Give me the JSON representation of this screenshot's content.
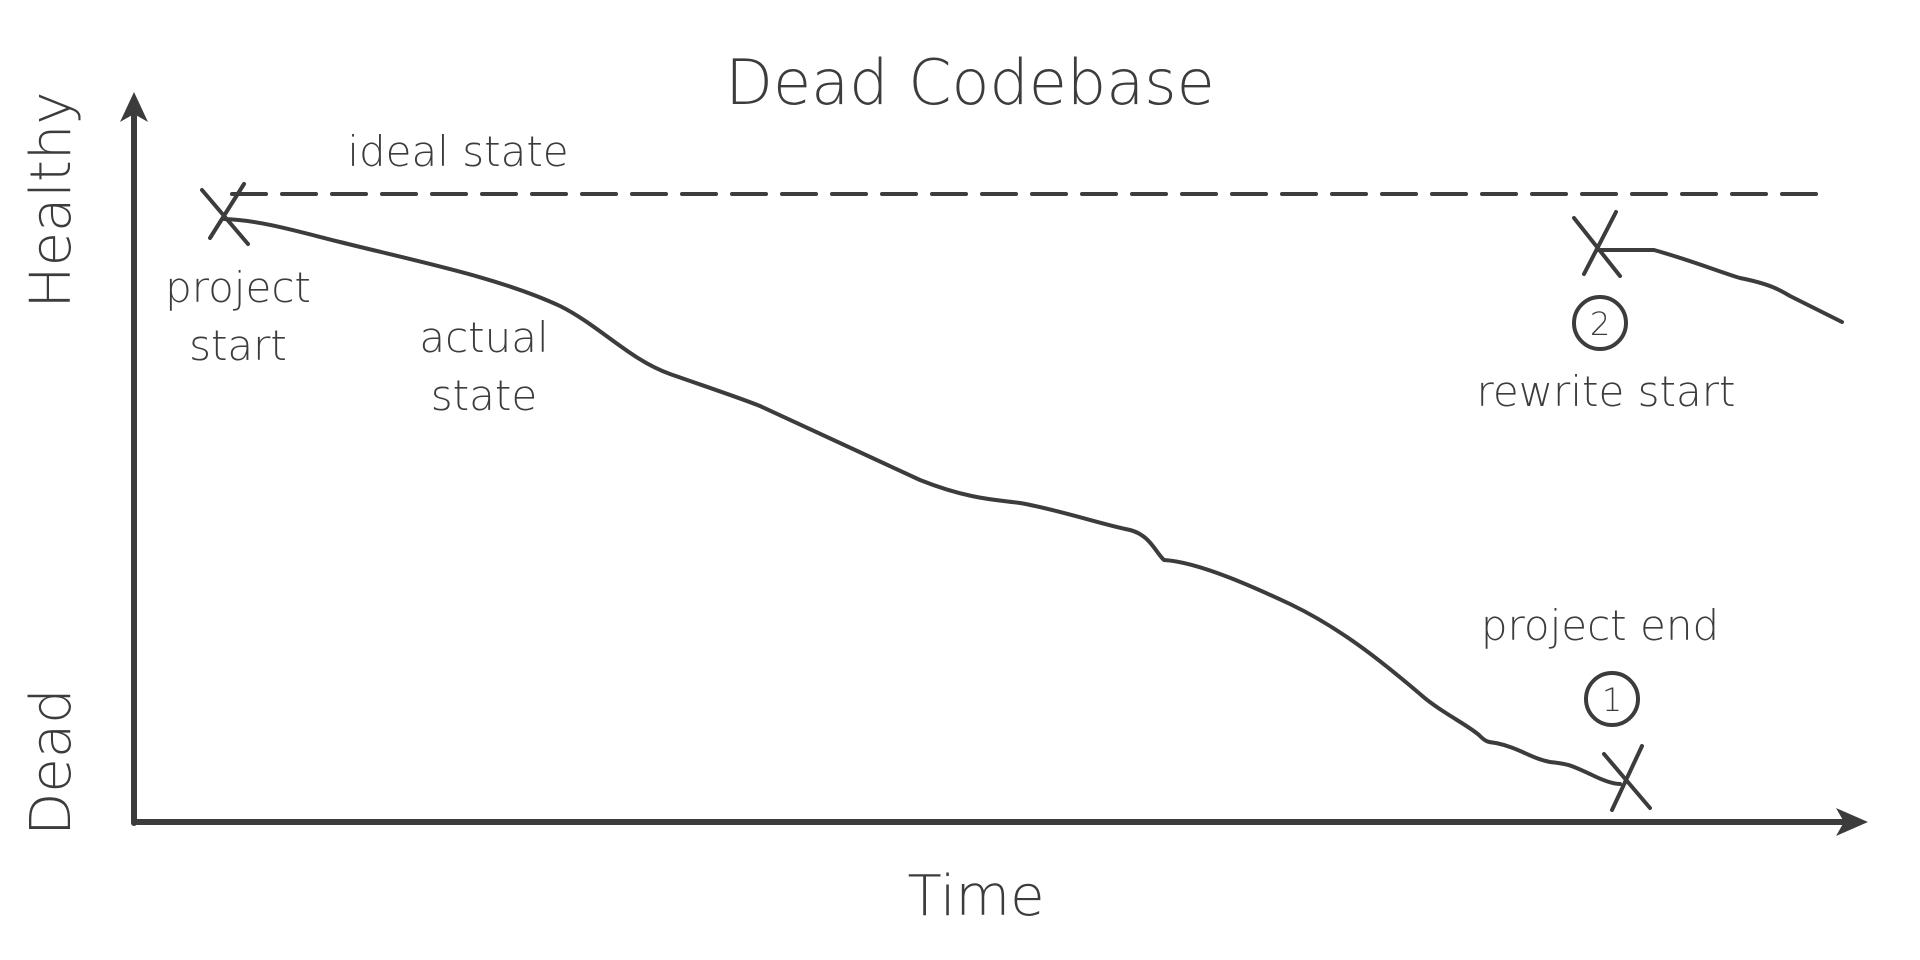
{
  "diagram": {
    "title": "Dead Codebase",
    "axes": {
      "x_label": "Time",
      "y_top_label": "Healthy",
      "y_bottom_label": "Dead"
    },
    "lines": {
      "ideal": "ideal state",
      "actual_line1": "actual",
      "actual_line2": "state"
    },
    "markers": {
      "start_line1": "project",
      "start_line2": "start",
      "end_label": "project end",
      "end_number": "1",
      "rewrite_label": "rewrite start",
      "rewrite_number": "2"
    },
    "colors": {
      "ink": "#3c3c3c",
      "background": "#ffffff"
    }
  }
}
